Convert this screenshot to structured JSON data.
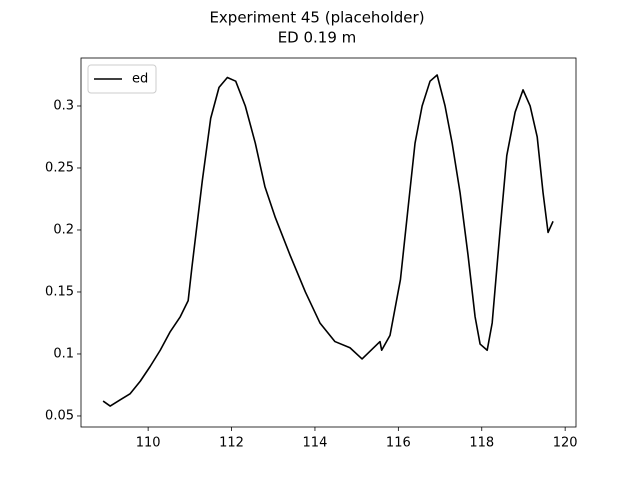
{
  "chart_data": {
    "type": "line",
    "title": "Experiment 45 (placeholder)",
    "subtitle": "ED 0.19 m",
    "x": [
      108.92,
      109.09,
      109.33,
      109.57,
      109.81,
      110.05,
      110.29,
      110.53,
      110.77,
      110.96,
      111.05,
      111.3,
      111.5,
      111.7,
      111.9,
      112.1,
      112.33,
      112.57,
      112.8,
      113.05,
      113.4,
      113.77,
      114.12,
      114.48,
      114.84,
      115.13,
      115.56,
      115.6,
      115.8,
      116.05,
      116.24,
      116.4,
      116.57,
      116.76,
      116.93,
      117.12,
      117.29,
      117.48,
      117.67,
      117.84,
      117.96,
      118.13,
      118.25,
      118.44,
      118.6,
      118.8,
      118.99,
      119.16,
      119.33,
      119.47,
      119.59,
      119.71
    ],
    "series": [
      {
        "name": "ed",
        "color": "#000000",
        "values": [
          0.062,
          0.058,
          0.063,
          0.068,
          0.078,
          0.09,
          0.103,
          0.118,
          0.13,
          0.143,
          0.17,
          0.24,
          0.29,
          0.315,
          0.323,
          0.32,
          0.3,
          0.27,
          0.235,
          0.21,
          0.18,
          0.15,
          0.125,
          0.11,
          0.105,
          0.096,
          0.11,
          0.103,
          0.115,
          0.16,
          0.22,
          0.27,
          0.3,
          0.32,
          0.325,
          0.3,
          0.27,
          0.23,
          0.18,
          0.13,
          0.108,
          0.103,
          0.125,
          0.2,
          0.26,
          0.295,
          0.313,
          0.3,
          0.275,
          0.23,
          0.198,
          0.207
        ]
      }
    ],
    "xlim": [
      108.39,
      120.26
    ],
    "xticks": [
      110,
      112,
      114,
      116,
      118,
      120
    ],
    "ylim": [
      0.0411,
      0.3387
    ],
    "yticks": [
      0.05,
      0.1,
      0.15,
      0.2,
      0.25,
      0.3
    ],
    "legend": "upper left"
  }
}
